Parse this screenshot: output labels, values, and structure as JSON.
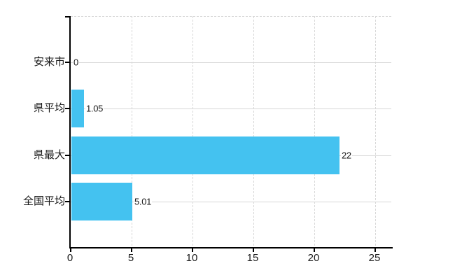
{
  "chart_data": {
    "type": "bar",
    "orientation": "horizontal",
    "categories": [
      "安来市",
      "県平均",
      "県最大",
      "全国平均"
    ],
    "values": [
      0,
      1.05,
      22,
      5.01
    ],
    "value_labels": [
      "0",
      "1.05",
      "22",
      "5.01"
    ],
    "x_tick_labels": [
      "0",
      "5",
      "10",
      "15",
      "20",
      "25"
    ],
    "xlim": [
      0,
      25
    ],
    "grid": {
      "vertical_lines": "dashed at 5,10,15,20,25",
      "horizontal_lines": "solid, one per category",
      "top_border": "dashed"
    },
    "legend": "none",
    "colors": {
      "bar": "#44c2f0",
      "grid": "#d7d7d7",
      "axis": "#000000",
      "text": "#1a1a1a",
      "background": "#ffffff"
    }
  }
}
